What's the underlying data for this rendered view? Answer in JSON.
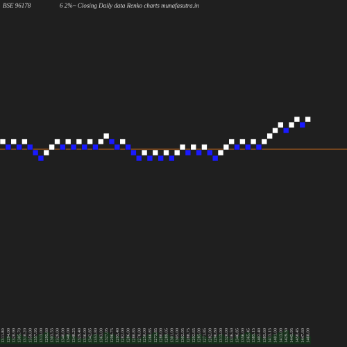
{
  "header": {
    "symbol": "BSE 96178",
    "subtitle": "6  2%~  Closing Daily data  Renko  charts munafasutra.in"
  },
  "colors": {
    "background": "#1f1f1f",
    "up_brick": "#ffffff",
    "down_brick": "#1a1aff",
    "last_price_line": "#c46a1e",
    "volume": "#16301a"
  },
  "chart_data": {
    "type": "renko",
    "title": "BSE 96178  6  2%~  Closing Daily data  Renko  charts munafasutra.in",
    "xlabel": "",
    "ylabel": "",
    "brick_size_percent": 2,
    "grid": false,
    "last_price_line": 1,
    "levels": [
      1,
      0,
      1,
      0,
      1,
      0,
      -1,
      -2,
      -1,
      0,
      1,
      0,
      1,
      0,
      1,
      0,
      1,
      0,
      1,
      2,
      1,
      0,
      1,
      0,
      -1,
      -2,
      -1,
      -2,
      -1,
      -2,
      -1,
      -2,
      -1,
      0,
      -1,
      0,
      -1,
      0,
      -1,
      -2,
      -1,
      0,
      1,
      0,
      1,
      0,
      1,
      0,
      1,
      2,
      3,
      4,
      3,
      4,
      5,
      4,
      5
    ],
    "directions": [
      "up",
      "down",
      "up",
      "down",
      "up",
      "down",
      "down",
      "down",
      "up",
      "up",
      "up",
      "down",
      "up",
      "down",
      "up",
      "down",
      "up",
      "down",
      "up",
      "up",
      "down",
      "down",
      "up",
      "down",
      "down",
      "down",
      "up",
      "down",
      "up",
      "down",
      "up",
      "down",
      "up",
      "up",
      "down",
      "up",
      "down",
      "up",
      "down",
      "down",
      "up",
      "up",
      "up",
      "down",
      "up",
      "down",
      "up",
      "down",
      "up",
      "up",
      "up",
      "up",
      "down",
      "up",
      "up",
      "down",
      "up"
    ],
    "tick_labels": [
      "1311.80",
      "1294.00",
      "1320.90",
      "1305.70",
      "1310.20",
      "1359.00",
      "1357.95",
      "1313.00",
      "1295.60",
      "1303.55",
      "1329.00",
      "1340.00",
      "1348.00",
      "1348.25",
      "1329.40",
      "1336.00",
      "1342.85",
      "1353.80",
      "1363.00",
      "1327.05",
      "1296.75",
      "1295.40",
      "1282.00",
      "1286.00",
      "1280.85",
      "1270.00",
      "1250.00",
      "1266.85",
      "1273.85",
      "1280.00",
      "1289.05",
      "1301.00",
      "1305.00",
      "1302.05",
      "1288.75",
      "1292.65",
      "1285.00",
      "1271.85",
      "1282.00",
      "1296.80",
      "1313.00",
      "1320.00",
      "1336.50",
      "1346.85",
      "1356.00",
      "1365.45",
      "1385.15",
      "1402.40",
      "1385.60",
      "1413.15",
      "1401.00",
      "1413.00",
      "1429.30",
      "1445.95",
      "1450.45",
      "1447.60",
      "1468.00"
    ],
    "volumes": [
      3,
      4,
      3,
      5,
      4,
      3,
      4,
      5,
      6,
      4,
      3,
      4,
      5,
      4,
      3,
      3,
      4,
      5,
      4,
      6,
      5,
      4,
      3,
      4,
      3,
      3,
      4,
      5,
      6,
      4,
      5,
      4,
      3,
      4,
      3,
      4,
      5,
      4,
      3,
      4,
      5,
      4,
      3,
      4,
      5,
      6,
      5,
      4,
      3,
      4,
      5,
      6,
      7,
      5,
      4,
      3,
      4
    ]
  }
}
